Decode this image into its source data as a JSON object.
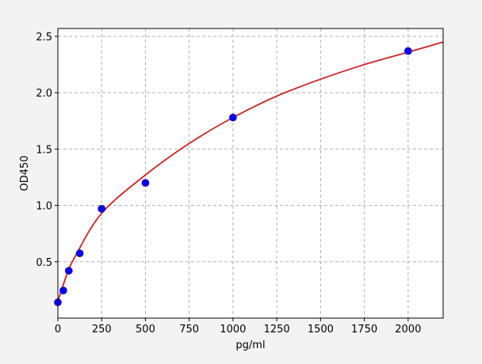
{
  "chart_data": {
    "type": "scatter",
    "title": "",
    "xlabel": "pg/ml",
    "ylabel": "OD450",
    "xlim": [
      0,
      2200
    ],
    "ylim": [
      0,
      2.57
    ],
    "xticks": [
      0,
      250,
      500,
      750,
      1000,
      1250,
      1500,
      1750,
      2000
    ],
    "yticks": [
      0.5,
      1.0,
      1.5,
      2.0,
      2.5
    ],
    "xtick_labels": [
      "0",
      "250",
      "500",
      "750",
      "1000",
      "1250",
      "1500",
      "1750",
      "2000"
    ],
    "ytick_labels": [
      "0.5",
      "1.0",
      "1.5",
      "2.0",
      "2.5"
    ],
    "grid": true,
    "points": {
      "x": [
        0,
        31.25,
        62.5,
        125,
        250,
        500,
        1000,
        2000
      ],
      "y": [
        0.14,
        0.245,
        0.42,
        0.575,
        0.97,
        1.2,
        1.78,
        2.37
      ],
      "color": "#0000ff"
    },
    "fit_curve": {
      "x": [
        0,
        50,
        100,
        250,
        500,
        750,
        1000,
        1250,
        1500,
        1750,
        2000,
        2200
      ],
      "y": [
        0.15,
        0.38,
        0.55,
        0.93,
        1.27,
        1.55,
        1.78,
        1.97,
        2.12,
        2.25,
        2.36,
        2.45
      ],
      "color": "#cc2222"
    }
  }
}
